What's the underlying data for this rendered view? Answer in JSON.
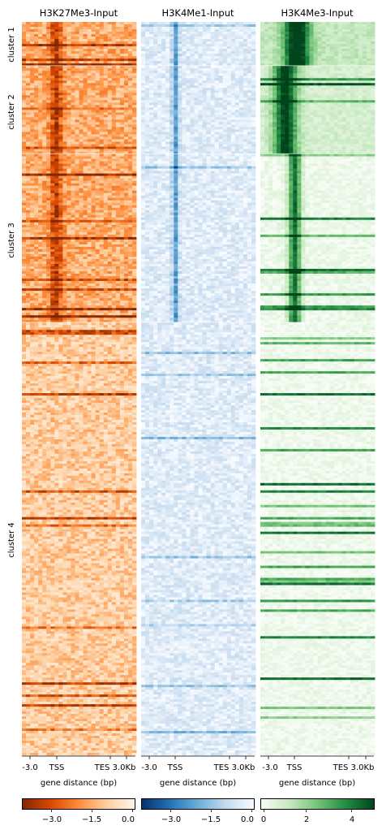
{
  "chart_data": {
    "type": "heatmap",
    "panels": [
      {
        "title": "H3K27Me3-Input",
        "colormap": "Oranges_r",
        "colors": [
          "#7f2704",
          "#d94801",
          "#fd8d3c",
          "#fdd0a2",
          "#fff5eb"
        ],
        "colorbar": {
          "range": [
            -4.2,
            0.0
          ],
          "ticks": [
            -3.0,
            -1.5,
            0.0
          ],
          "tick_labels": [
            "−3.0",
            "−1.5",
            "0.0"
          ]
        },
        "xticks": [
          "-3.0",
          "TSS",
          "TES",
          "3.0Kb"
        ],
        "xlabel": "gene distance (bp)"
      },
      {
        "title": "H3K4Me1-Input",
        "colormap": "Blues_r",
        "colors": [
          "#08306b",
          "#2171b5",
          "#6baed6",
          "#c6dbef",
          "#f7fbff"
        ],
        "colorbar": {
          "range": [
            -4.2,
            0.0
          ],
          "ticks": [
            -3.0,
            -1.5,
            0.0
          ],
          "tick_labels": [
            "−3.0",
            "−1.5",
            "0.0"
          ]
        },
        "xticks": [
          "-3.0",
          "TSS",
          "TES",
          "3.0Kb"
        ],
        "xlabel": "gene distance (bp)"
      },
      {
        "title": "H3K4Me3-Input",
        "colormap": "Greens",
        "colors": [
          "#f7fcf5",
          "#c7e9c0",
          "#74c476",
          "#238b45",
          "#00441b"
        ],
        "colorbar": {
          "range": [
            0,
            5
          ],
          "ticks": [
            0,
            2,
            4
          ],
          "tick_labels": [
            "0",
            "2",
            "4"
          ]
        },
        "xticks": [
          "-3.0",
          "TSS",
          "TES",
          "3.0Kb"
        ],
        "xlabel": "gene distance (bp)"
      }
    ],
    "clusters": [
      {
        "label": "cluster 1",
        "row_fraction": 0.06
      },
      {
        "label": "cluster 2",
        "row_fraction": 0.12
      },
      {
        "label": "cluster 3",
        "row_fraction": 0.23
      },
      {
        "label": "cluster 4",
        "row_fraction": 0.59
      }
    ],
    "x_region": {
      "upstream_bp": 3000,
      "downstream_bp": 3000,
      "reference_start": "TSS",
      "reference_end": "TES"
    }
  }
}
